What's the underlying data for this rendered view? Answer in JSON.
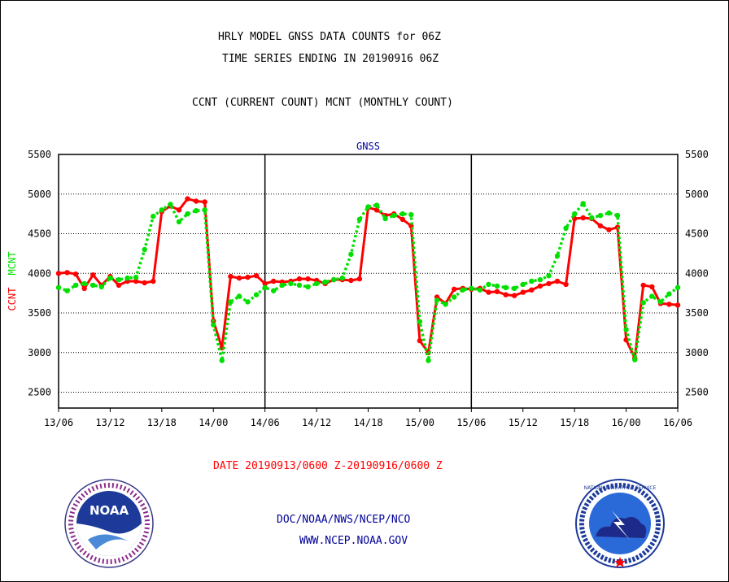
{
  "header": {
    "line1": "HRLY MODEL GNSS DATA COUNTS for 06Z",
    "line2": "TIME SERIES ENDING IN 20190916 06Z",
    "line3": "CCNT (CURRENT COUNT) MCNT (MONTHLY COUNT)"
  },
  "footer": {
    "date_range": "DATE 20190913/0600 Z-20190916/0600 Z",
    "org": "DOC/NOAA/NWS/NCEP/NCO",
    "url": "WWW.NCEP.NOAA.GOV"
  },
  "logos": {
    "noaa_text": "NOAA",
    "nws_text": "NATIONAL WEATHER SERVICE"
  },
  "colors": {
    "ccnt": "#ff0000",
    "mcnt": "#00e000",
    "title": "#000099",
    "date": "#ff0000",
    "footer": "#000099"
  },
  "chart_data": {
    "type": "line",
    "title": "GNSS",
    "ylabel_left": [
      "CCNT",
      "MCNT"
    ],
    "ylim": [
      2300,
      5500
    ],
    "yticks": [
      "2500",
      "3000",
      "3500",
      "4000",
      "4500",
      "5000",
      "5500"
    ],
    "xticks": [
      "13/06",
      "13/12",
      "13/18",
      "14/00",
      "14/06",
      "14/12",
      "14/18",
      "15/00",
      "15/06",
      "15/12",
      "15/18",
      "16/00",
      "16/06"
    ],
    "x_hours_start": 0,
    "x_hours_end": 72,
    "grid": true,
    "series": [
      {
        "name": "CCNT",
        "color": "#ff0000",
        "style": "solid",
        "values": [
          4000,
          4010,
          3990,
          3810,
          3980,
          3850,
          3960,
          3850,
          3900,
          3900,
          3880,
          3900,
          4780,
          4850,
          4800,
          4940,
          4910,
          4900,
          3400,
          3060,
          3960,
          3940,
          3950,
          3970,
          3870,
          3900,
          3890,
          3900,
          3930,
          3930,
          3910,
          3870,
          3920,
          3920,
          3910,
          3930,
          4830,
          4800,
          4730,
          4750,
          4680,
          4600,
          3150,
          3000,
          3700,
          3620,
          3800,
          3810,
          3800,
          3810,
          3760,
          3770,
          3730,
          3720,
          3760,
          3790,
          3840,
          3870,
          3900,
          3860,
          4690,
          4700,
          4690,
          4600,
          4550,
          4580,
          3160,
          2930,
          3850,
          3830,
          3620,
          3610,
          3600
        ]
      },
      {
        "name": "MCNT",
        "color": "#00e000",
        "style": "dotted",
        "values": [
          3820,
          3780,
          3850,
          3870,
          3850,
          3830,
          3940,
          3920,
          3940,
          3950,
          4300,
          4720,
          4800,
          4870,
          4650,
          4750,
          4790,
          4800,
          3350,
          2900,
          3640,
          3710,
          3640,
          3730,
          3820,
          3780,
          3850,
          3870,
          3850,
          3830,
          3870,
          3890,
          3920,
          3940,
          4240,
          4680,
          4840,
          4860,
          4690,
          4730,
          4750,
          4740,
          3390,
          2900,
          3660,
          3610,
          3700,
          3790,
          3810,
          3790,
          3860,
          3840,
          3820,
          3810,
          3860,
          3900,
          3920,
          3970,
          4220,
          4570,
          4750,
          4880,
          4700,
          4730,
          4760,
          4730,
          3290,
          2910,
          3630,
          3710,
          3640,
          3740,
          3820
        ]
      }
    ]
  }
}
